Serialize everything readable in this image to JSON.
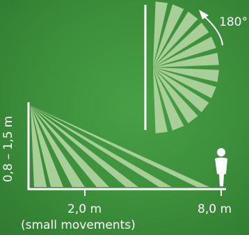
{
  "labels": {
    "angle": "180°",
    "height": "0,8 – 1,5 m",
    "near_distance": "2,0 m",
    "far_distance": "8,0 m",
    "near_note": "(small movements)"
  },
  "colors": {
    "background": "#3a8a3a",
    "beam": "#a9cf98",
    "line": "#ffffff"
  },
  "icons": {
    "person": "person-silhouette-icon",
    "arrow": "curved-arrow-icon"
  }
}
